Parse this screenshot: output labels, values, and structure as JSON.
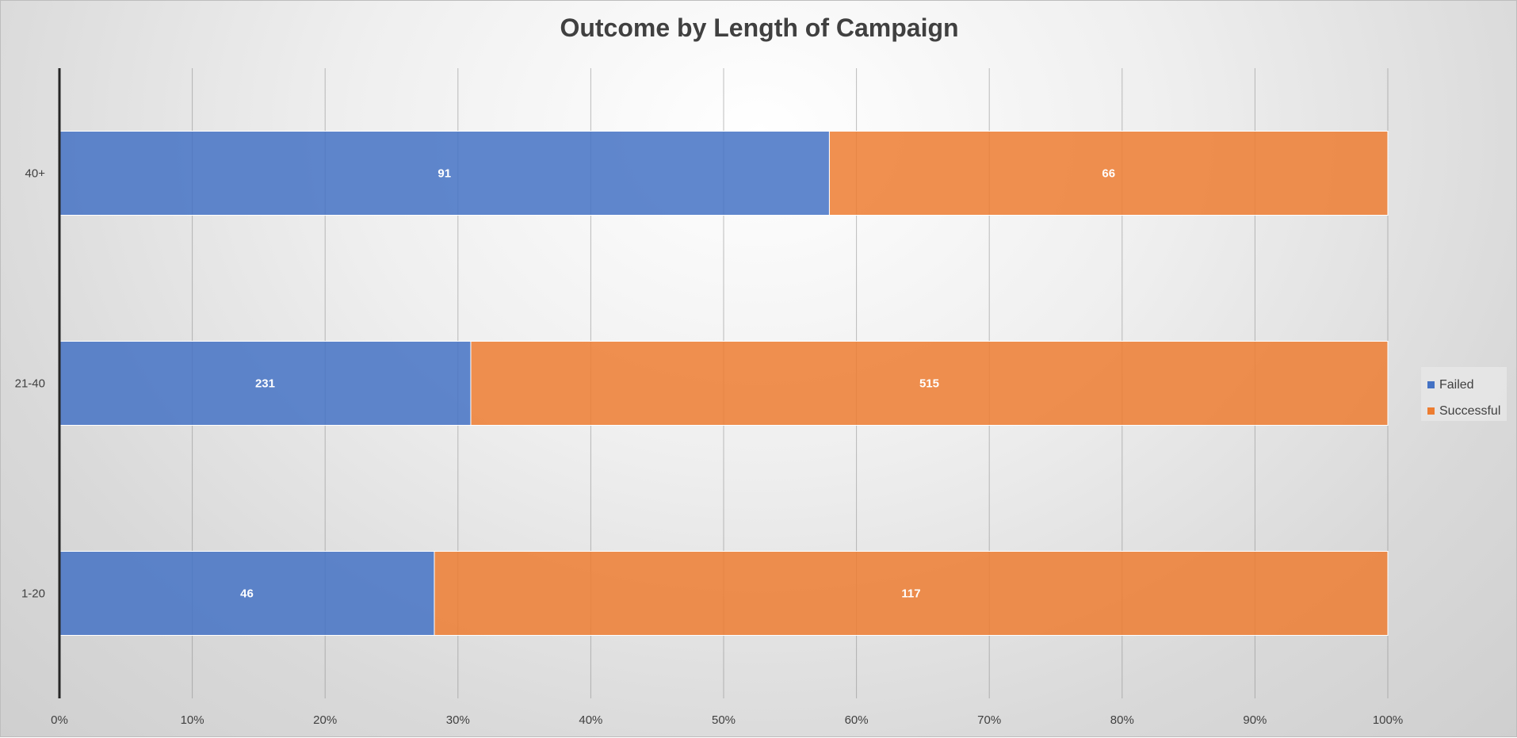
{
  "chart_data": {
    "type": "bar",
    "orientation": "horizontal",
    "stacked": "percent",
    "title": "Outcome by Length of Campaign",
    "xlabel": "",
    "ylabel": "",
    "categories": [
      "40+",
      "21-40",
      "1-20"
    ],
    "series": [
      {
        "name": "Failed",
        "color": "#4472C4",
        "values": [
          91,
          231,
          46
        ]
      },
      {
        "name": "Successful",
        "color": "#ED7D31",
        "values": [
          66,
          515,
          117
        ]
      }
    ],
    "xlim": [
      0,
      100
    ],
    "x_ticks": [
      "0%",
      "10%",
      "20%",
      "30%",
      "40%",
      "50%",
      "60%",
      "70%",
      "80%",
      "90%",
      "100%"
    ],
    "grid": "vertical",
    "legend": "right"
  }
}
